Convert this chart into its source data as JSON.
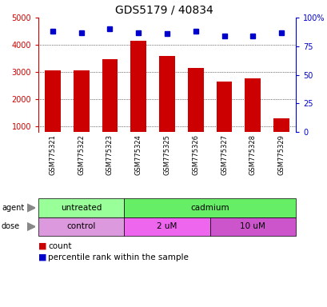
{
  "title": "GDS5179 / 40834",
  "samples": [
    "GSM775321",
    "GSM775322",
    "GSM775323",
    "GSM775324",
    "GSM775325",
    "GSM775326",
    "GSM775327",
    "GSM775328",
    "GSM775329"
  ],
  "counts": [
    3060,
    3060,
    3480,
    4160,
    3580,
    3160,
    2640,
    2780,
    1300
  ],
  "percentiles": [
    88,
    87,
    90,
    87,
    86,
    88,
    84,
    84,
    87
  ],
  "ylim_left": [
    800,
    5000
  ],
  "ylim_right": [
    0,
    100
  ],
  "bar_color": "#cc0000",
  "dot_color": "#0000cc",
  "left_axis_color": "#cc0000",
  "right_axis_color": "#0000cc",
  "agent_groups": [
    {
      "label": "untreated",
      "start": 0,
      "end": 3,
      "color": "#99ff99"
    },
    {
      "label": "cadmium",
      "start": 3,
      "end": 9,
      "color": "#66ee66"
    }
  ],
  "dose_groups": [
    {
      "label": "control",
      "start": 0,
      "end": 3,
      "color": "#dd99dd"
    },
    {
      "label": "2 uM",
      "start": 3,
      "end": 6,
      "color": "#ee66ee"
    },
    {
      "label": "10 uM",
      "start": 6,
      "end": 9,
      "color": "#cc55cc"
    }
  ],
  "legend_count_color": "#cc0000",
  "legend_pct_color": "#0000cc",
  "tick_values_left": [
    1000,
    2000,
    3000,
    4000,
    5000
  ],
  "tick_values_right": [
    0,
    25,
    50,
    75,
    100
  ],
  "right_tick_labels": [
    "0",
    "25",
    "50",
    "75",
    "100%"
  ]
}
